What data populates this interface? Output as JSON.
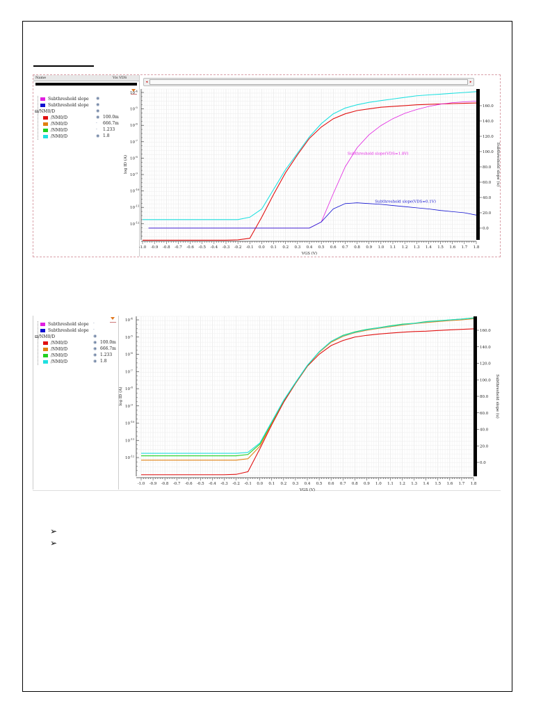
{
  "page": {
    "bullets": [
      "➢",
      "➢"
    ]
  },
  "chart1_ui": {
    "header_name": "Name",
    "header_vis": "Vis  VDS",
    "scroll_left": "◂",
    "scroll_right": "▸",
    "legend": [
      {
        "label": "Subthreshold slope",
        "color": "#e020e0",
        "vis": "eye-icon",
        "vis_glyph": "◉",
        "value": "",
        "indent": 1
      },
      {
        "label": "Subthreshold slope",
        "color": "#1010d0",
        "vis": "eye-icon",
        "vis_glyph": "◉",
        "value": "",
        "indent": 1
      },
      {
        "label": "/NM0/D",
        "color": "",
        "vis": "eye-icon",
        "vis_glyph": "◉",
        "value": "",
        "indent": 0,
        "group": true
      },
      {
        "label": "/NM0/D",
        "color": "#e01010",
        "vis": "eye-icon",
        "vis_glyph": "◉",
        "value": "100.0m",
        "indent": 2
      },
      {
        "label": "/NM0/D",
        "color": "#e08010",
        "vis": "dot-icon",
        "vis_glyph": "·",
        "value": "666.7m",
        "indent": 2
      },
      {
        "label": "/NM0/D",
        "color": "#20d020",
        "vis": "dot-icon",
        "vis_glyph": "·",
        "value": "1.233",
        "indent": 2
      },
      {
        "label": "/NM0/D",
        "color": "#20e0e0",
        "vis": "eye-icon",
        "vis_glyph": "◉",
        "value": "1.8",
        "indent": 2
      }
    ]
  },
  "chart2_ui": {
    "legend": [
      {
        "label": "Subthreshold slope",
        "color": "#e020e0",
        "vis": "dot-icon",
        "vis_glyph": "·",
        "value": "",
        "indent": 1
      },
      {
        "label": "Subthreshold slope",
        "color": "#1010d0",
        "vis": "dot-icon",
        "vis_glyph": "·",
        "value": "",
        "indent": 1
      },
      {
        "label": "/NM0/D",
        "color": "",
        "vis": "eye-icon",
        "vis_glyph": "◉",
        "value": "",
        "indent": 0,
        "group": true
      },
      {
        "label": "/NM0/D",
        "color": "#e01010",
        "vis": "eye-icon",
        "vis_glyph": "◉",
        "value": "100.0m",
        "indent": 2
      },
      {
        "label": "/NM0/D",
        "color": "#e08010",
        "vis": "eye-icon",
        "vis_glyph": "◉",
        "value": "666.7m",
        "indent": 2
      },
      {
        "label": "/NM0/D",
        "color": "#20d020",
        "vis": "eye-icon",
        "vis_glyph": "◉",
        "value": "1.233",
        "indent": 2
      },
      {
        "label": "/NM0/D",
        "color": "#20e0e0",
        "vis": "eye-icon",
        "vis_glyph": "◉",
        "value": "1.8",
        "indent": 2
      }
    ]
  },
  "chart_data": [
    {
      "type": "line",
      "xlabel": "VGS (V)",
      "ylabel": "log ID (A)",
      "ylabel_right": "Subthreshold slope (u)",
      "xlim": [
        -1.0,
        1.8
      ],
      "x_ticks": [
        "-1.0",
        "-0.9",
        "-0.8",
        "-0.7",
        "-0.6",
        "-0.5",
        "-0.4",
        "-0.3",
        "-0.2",
        "-0.1",
        "0.0",
        "0.1",
        "0.2",
        "0.3",
        "0.4",
        "0.5",
        "0.6",
        "0.7",
        "0.8",
        "0.9",
        "1.0",
        "1.1",
        "1.2",
        "1.3",
        "1.4",
        "1.5",
        "1.6",
        "1.7",
        "1.8"
      ],
      "y_scale": "log",
      "y_tick_base": "10",
      "y_tick_exponents": [
        "-4",
        "-5",
        "-6",
        "-7",
        "-8",
        "-9",
        "-10",
        "-11",
        "-12"
      ],
      "y_right_ticks": [
        "160.0",
        "140.0",
        "120.0",
        "100.0",
        "80.0",
        "60.0",
        "40.0",
        "20.0",
        "0.0"
      ],
      "y_right_lim": [
        0,
        160
      ],
      "grid": true,
      "annotations": [
        {
          "text": "Subthreshold slope(VDS=1.8V)",
          "color": "#e020e0",
          "at_x": 0.72,
          "at_y_right": 96
        },
        {
          "text": "Subthreshold slope(VDS=0.1V)",
          "color": "#1010d0",
          "at_x": 0.95,
          "at_y_right": 33
        }
      ],
      "x": [
        -1.0,
        -0.9,
        -0.8,
        -0.7,
        -0.6,
        -0.5,
        -0.4,
        -0.3,
        -0.2,
        -0.1,
        0.0,
        0.1,
        0.2,
        0.3,
        0.4,
        0.5,
        0.6,
        0.7,
        0.8,
        0.9,
        1.0,
        1.1,
        1.2,
        1.3,
        1.4,
        1.5,
        1.6,
        1.7,
        1.8
      ],
      "series": [
        {
          "axis": "left",
          "color": "#e01010",
          "values": [
            1e-13,
            1e-13,
            1e-13,
            1e-13,
            1e-13,
            1e-13,
            1e-13,
            1e-13,
            1.05e-13,
            1.3e-13,
            2.5e-12,
            6.3e-11,
            1.3e-09,
            1.6e-08,
            1.6e-07,
            7.9e-07,
            2.5e-06,
            5e-06,
            7.9e-06,
            1e-05,
            1.26e-05,
            1.41e-05,
            1.58e-05,
            1.78e-05,
            1.9e-05,
            2e-05,
            2.1e-05,
            2.2e-05,
            2.3e-05
          ]
        },
        {
          "axis": "left",
          "color": "#20e0e0",
          "values": [
            1.8e-12,
            1.8e-12,
            1.8e-12,
            1.8e-12,
            1.8e-12,
            1.8e-12,
            1.8e-12,
            1.8e-12,
            1.8e-12,
            2.5e-12,
            7.9e-12,
            1.26e-10,
            2e-09,
            2e-08,
            2e-07,
            1.26e-06,
            5e-06,
            1.12e-05,
            1.78e-05,
            2.5e-05,
            3.2e-05,
            4e-05,
            5e-05,
            6.3e-05,
            7.1e-05,
            7.9e-05,
            8.9e-05,
            0.0001,
            0.000112
          ]
        },
        {
          "axis": "right",
          "color": "#e020e0",
          "start_x": -0.95,
          "values": [
            null,
            0,
            0,
            0,
            0,
            0,
            0,
            0,
            0,
            0,
            0,
            0,
            0,
            0,
            0,
            8,
            45,
            80,
            105,
            122,
            134,
            143,
            150,
            155,
            159,
            162,
            164,
            165,
            166
          ]
        },
        {
          "axis": "right",
          "color": "#1010d0",
          "start_x": -0.95,
          "values": [
            null,
            0,
            0,
            0,
            0,
            0,
            0,
            0,
            0,
            0,
            0,
            0,
            0,
            0,
            0,
            8,
            25,
            32,
            33,
            32,
            31,
            29.5,
            28,
            26.5,
            25,
            23,
            21.5,
            20,
            17
          ]
        }
      ]
    },
    {
      "type": "line",
      "xlabel": "VGS (V)",
      "ylabel": "log ID (A)",
      "ylabel_right": "Subthreshold slope (u)",
      "xlim": [
        -1.0,
        1.8
      ],
      "x_ticks": [
        "-1.0",
        "-0.9",
        "-0.8",
        "-0.7",
        "-0.6",
        "-0.5",
        "-0.4",
        "-0.3",
        "-0.2",
        "-0.1",
        "0.0",
        "0.1",
        "0.2",
        "0.3",
        "0.4",
        "0.5",
        "0.6",
        "0.7",
        "0.8",
        "0.9",
        "1.0",
        "1.1",
        "1.2",
        "1.3",
        "1.4",
        "1.5",
        "1.6",
        "1.7",
        "1.8"
      ],
      "y_scale": "log",
      "y_tick_base": "10",
      "y_tick_exponents": [
        "-4",
        "-5",
        "-6",
        "-7",
        "-8",
        "-9",
        "-10",
        "-11",
        "-12"
      ],
      "y_right_ticks": [
        "160.0",
        "140.0",
        "120.0",
        "100.0",
        "80.0",
        "60.0",
        "40.0",
        "20.0",
        "0.0"
      ],
      "y_right_lim": [
        0,
        160
      ],
      "grid": true,
      "x": [
        -1.0,
        -0.9,
        -0.8,
        -0.7,
        -0.6,
        -0.5,
        -0.4,
        -0.3,
        -0.2,
        -0.1,
        0.0,
        0.1,
        0.2,
        0.3,
        0.4,
        0.5,
        0.6,
        0.7,
        0.8,
        0.9,
        1.0,
        1.1,
        1.2,
        1.3,
        1.4,
        1.5,
        1.6,
        1.7,
        1.8
      ],
      "series": [
        {
          "axis": "left",
          "color": "#e01010",
          "values": [
            1e-13,
            1e-13,
            1e-13,
            1e-13,
            1e-13,
            1e-13,
            1e-13,
            1e-13,
            1.05e-13,
            1.5e-13,
            3.2e-12,
            7.9e-11,
            1.6e-09,
            2e-08,
            2e-07,
            1e-06,
            3.2e-06,
            6.3e-06,
            1e-05,
            1.26e-05,
            1.5e-05,
            1.7e-05,
            1.9e-05,
            2.1e-05,
            2.2e-05,
            2.4e-05,
            2.6e-05,
            2.8e-05,
            3e-05
          ]
        },
        {
          "axis": "left",
          "color": "#e08010",
          "values": [
            7e-13,
            7e-13,
            7e-13,
            7e-13,
            7e-13,
            7e-13,
            7e-13,
            7e-13,
            7e-13,
            8.5e-13,
            4.5e-12,
            1e-10,
            2e-09,
            2.2e-08,
            2.2e-07,
            1.3e-06,
            5e-06,
            1.1e-05,
            1.8e-05,
            2.5e-05,
            3.2e-05,
            4e-05,
            5e-05,
            6e-05,
            7e-05,
            8e-05,
            9e-05,
            0.0001,
            0.000115
          ]
        },
        {
          "axis": "left",
          "color": "#20d020",
          "values": [
            1.25e-12,
            1.25e-12,
            1.25e-12,
            1.25e-12,
            1.25e-12,
            1.25e-12,
            1.25e-12,
            1.25e-12,
            1.25e-12,
            1.5e-12,
            6e-12,
            1.1e-10,
            2e-09,
            2.2e-08,
            2.2e-07,
            1.4e-06,
            5.6e-06,
            1.26e-05,
            2e-05,
            2.8e-05,
            3.5e-05,
            4.5e-05,
            5.6e-05,
            6.3e-05,
            7.9e-05,
            8.9e-05,
            0.0001,
            0.000112,
            0.00013
          ]
        },
        {
          "axis": "left",
          "color": "#20e0e0",
          "values": [
            1.75e-12,
            1.75e-12,
            1.75e-12,
            1.75e-12,
            1.75e-12,
            1.75e-12,
            1.75e-12,
            1.75e-12,
            1.75e-12,
            2e-12,
            7e-12,
            1.2e-10,
            2.1e-09,
            2.3e-08,
            2.3e-07,
            1.4e-06,
            5.6e-06,
            1.2e-05,
            1.9e-05,
            2.7e-05,
            3.4e-05,
            4.3e-05,
            5.4e-05,
            6.2e-05,
            7.6e-05,
            8.6e-05,
            9.8e-05,
            0.00011,
            0.000125
          ]
        }
      ]
    }
  ]
}
